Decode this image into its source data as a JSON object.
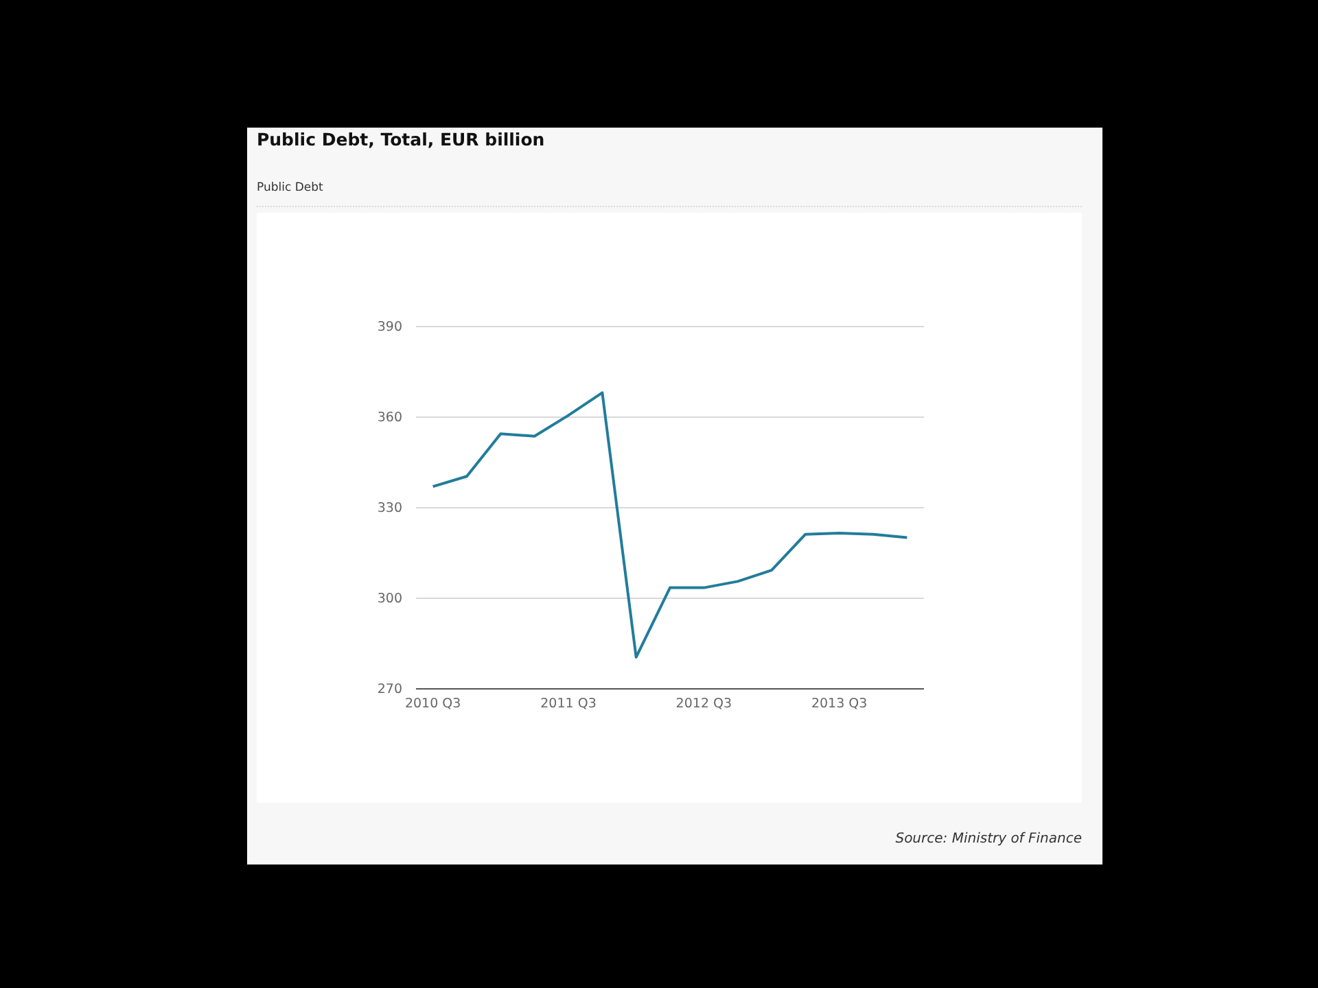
{
  "chart_data": {
    "type": "line",
    "title": "Public Debt, Total, EUR billion",
    "subtitle": "Public Debt",
    "categories": [
      "2010 Q3",
      null,
      null,
      null,
      "2011 Q3",
      null,
      null,
      null,
      "2012 Q3",
      null,
      null,
      null,
      "2013 Q3",
      null,
      null
    ],
    "series": [
      {
        "color": "#227c9b",
        "values": [
          337.0,
          340.4,
          354.5,
          353.7,
          360.6,
          368.1,
          280.5,
          303.5,
          303.5,
          305.6,
          309.3,
          321.2,
          321.6,
          321.2,
          320.1
        ]
      }
    ],
    "ylim": [
      270,
      390
    ],
    "yticks": [
      270,
      300,
      330,
      360,
      390
    ],
    "grid": "y",
    "annotations": [
      "Source: Ministry of Finance"
    ]
  }
}
